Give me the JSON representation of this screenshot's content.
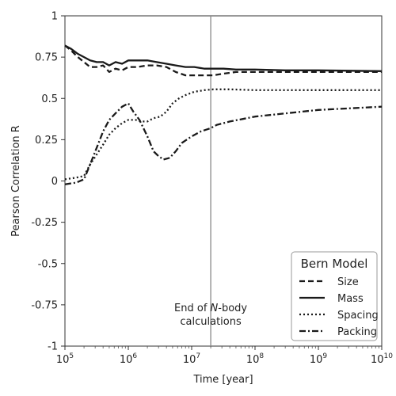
{
  "chart_data": {
    "type": "line",
    "xlabel": "Time [year]",
    "ylabel": "Pearson Correlation R",
    "xscale": "log",
    "xlim": [
      100000,
      10000000000
    ],
    "ylim": [
      -1,
      1
    ],
    "x_ticks": [
      {
        "value": 100000,
        "base": "10",
        "exp": "5"
      },
      {
        "value": 1000000,
        "base": "10",
        "exp": "6"
      },
      {
        "value": 10000000,
        "base": "10",
        "exp": "7"
      },
      {
        "value": 100000000,
        "base": "10",
        "exp": "8"
      },
      {
        "value": 1000000000,
        "base": "10",
        "exp": "9"
      },
      {
        "value": 10000000000,
        "base": "10",
        "exp": "10"
      }
    ],
    "y_ticks": [
      "1",
      "0.75",
      "0.5",
      "0.25",
      "0",
      "-0.25",
      "-0.5",
      "-0.75",
      "-1"
    ],
    "grid": false,
    "legend": {
      "title": "Bern Model",
      "position": "bottom-right"
    },
    "vline": {
      "x": 20000000,
      "color": "#888888",
      "annotation_lines": [
        [
          {
            "text": "End of ",
            "italic": false
          },
          {
            "text": "N",
            "italic": true
          },
          {
            "text": "-body",
            "italic": false
          }
        ],
        [
          {
            "text": "calculations",
            "italic": false
          }
        ]
      ]
    },
    "series": [
      {
        "name": "Size",
        "dash": "7,4",
        "x": [
          100000,
          125000,
          160000,
          200000,
          250000,
          316000,
          400000,
          500000,
          630000,
          800000,
          1000000,
          1400000,
          2000000,
          2800000,
          4000000,
          5600000,
          8000000,
          11000000,
          16000000,
          22000000,
          32000000,
          50000000,
          100000000,
          300000000,
          1000000000,
          10000000000
        ],
        "y": [
          0.82,
          0.79,
          0.75,
          0.72,
          0.69,
          0.69,
          0.7,
          0.66,
          0.68,
          0.67,
          0.69,
          0.69,
          0.7,
          0.7,
          0.69,
          0.66,
          0.64,
          0.64,
          0.64,
          0.64,
          0.65,
          0.66,
          0.66,
          0.66,
          0.66,
          0.66
        ]
      },
      {
        "name": "Mass",
        "dash": "",
        "x": [
          100000,
          125000,
          160000,
          200000,
          250000,
          316000,
          400000,
          500000,
          630000,
          800000,
          1000000,
          1400000,
          2000000,
          2800000,
          4000000,
          5600000,
          8000000,
          11000000,
          16000000,
          22000000,
          32000000,
          50000000,
          100000000,
          300000000,
          1000000000,
          10000000000
        ],
        "y": [
          0.82,
          0.8,
          0.77,
          0.75,
          0.73,
          0.72,
          0.72,
          0.7,
          0.72,
          0.71,
          0.73,
          0.73,
          0.73,
          0.72,
          0.71,
          0.7,
          0.69,
          0.69,
          0.68,
          0.68,
          0.68,
          0.675,
          0.675,
          0.67,
          0.67,
          0.665
        ]
      },
      {
        "name": "Spacing",
        "dash": "2,3",
        "x": [
          100000,
          150000,
          200000,
          250000,
          316000,
          400000,
          500000,
          630000,
          800000,
          1000000,
          1300000,
          1600000,
          2000000,
          2500000,
          3200000,
          4000000,
          5000000,
          6300000,
          8000000,
          11000000,
          16000000,
          22000000,
          40000000,
          100000000,
          1000000000,
          10000000000
        ],
        "y": [
          0.01,
          0.02,
          0.03,
          0.1,
          0.16,
          0.22,
          0.28,
          0.32,
          0.35,
          0.37,
          0.37,
          0.36,
          0.36,
          0.38,
          0.39,
          0.42,
          0.47,
          0.5,
          0.52,
          0.54,
          0.55,
          0.555,
          0.555,
          0.55,
          0.55,
          0.55
        ]
      },
      {
        "name": "Packing",
        "dash": "8,3,2,3",
        "x": [
          100000,
          150000,
          200000,
          250000,
          316000,
          400000,
          500000,
          630000,
          800000,
          1000000,
          1200000,
          1500000,
          2000000,
          2500000,
          3000000,
          3600000,
          4500000,
          5600000,
          7000000,
          10000000,
          14000000,
          20000000,
          25000000,
          40000000,
          100000000,
          1000000000,
          10000000000
        ],
        "y": [
          -0.02,
          -0.01,
          0.01,
          0.1,
          0.2,
          0.3,
          0.37,
          0.41,
          0.45,
          0.47,
          0.42,
          0.37,
          0.27,
          0.18,
          0.15,
          0.13,
          0.14,
          0.18,
          0.23,
          0.27,
          0.3,
          0.32,
          0.34,
          0.36,
          0.39,
          0.43,
          0.45
        ]
      }
    ]
  }
}
